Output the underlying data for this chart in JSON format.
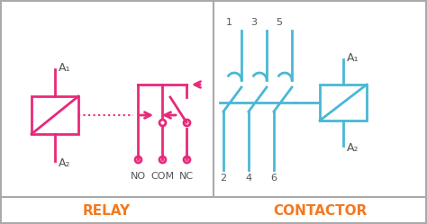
{
  "relay_color": "#e8297a",
  "contactor_color": "#4ab8d4",
  "orange_color": "#f47920",
  "border_color": "#aaaaaa",
  "bg_color": "#ffffff",
  "title_relay": "RELAY",
  "title_contactor": "CONTACTOR",
  "label_A1": "A₁",
  "label_A2": "A₂",
  "label_NO": "NO",
  "label_COM": "COM",
  "label_NC": "NC",
  "label_gray": "#555555"
}
